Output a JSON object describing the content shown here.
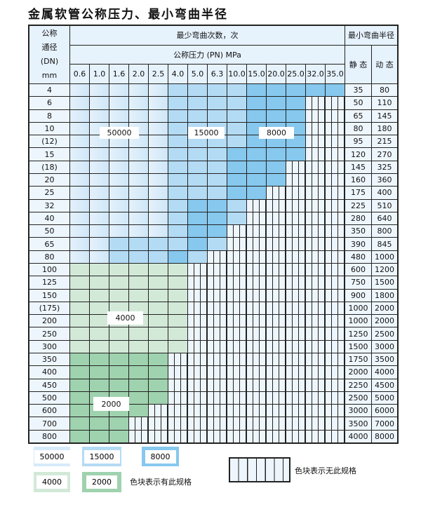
{
  "title": "金属软管公称压力、最小弯曲半径",
  "header": {
    "dn": "公称\n通径\n(DN)\nmm",
    "cycles": "最少弯曲次数，次",
    "pressure": "公称压力 (PN) MPa",
    "radius": "最小弯曲半径",
    "static": "静 态",
    "dynamic": "动 态"
  },
  "pressures": [
    "0.6",
    "1.0",
    "1.6",
    "2.0",
    "2.5",
    "4.0",
    "5.0",
    "6.3",
    "10.0",
    "15.0",
    "20.0",
    "25.0",
    "32.0",
    "35.0"
  ],
  "rows": [
    {
      "dn": "4",
      "static": "35",
      "dynamic": "80",
      "cells": "LLLLLMMMMDDDDD"
    },
    {
      "dn": "6",
      "static": "50",
      "dynamic": "110",
      "cells": "LLLLLMMMMDDDNN"
    },
    {
      "dn": "8",
      "static": "65",
      "dynamic": "145",
      "cells": "LLLLLMMMMDDDNN"
    },
    {
      "dn": "10",
      "static": "80",
      "dynamic": "180",
      "cells": "LLLLLMMMMDDDNN"
    },
    {
      "dn": "(12)",
      "static": "95",
      "dynamic": "215",
      "cells": "LLLLLMMMMDDDNN"
    },
    {
      "dn": "15",
      "static": "120",
      "dynamic": "270",
      "cells": "LLLLLMMMDDDDNN"
    },
    {
      "dn": "(18)",
      "static": "145",
      "dynamic": "325",
      "cells": "LLLLLMMMDDDNNN"
    },
    {
      "dn": "20",
      "static": "160",
      "dynamic": "360",
      "cells": "LLLLLMMMDDDNNN"
    },
    {
      "dn": "25",
      "static": "175",
      "dynamic": "400",
      "cells": "LLLLLMMMDDNNNN"
    },
    {
      "dn": "32",
      "static": "225",
      "dynamic": "510",
      "cells": "LLLLLMDDMNNNNN"
    },
    {
      "dn": "40",
      "static": "280",
      "dynamic": "640",
      "cells": "LLLLLMDDMNNNNN"
    },
    {
      "dn": "50",
      "static": "350",
      "dynamic": "800",
      "cells": "LLLLLMDDNNNNNN"
    },
    {
      "dn": "65",
      "static": "390",
      "dynamic": "845",
      "cells": "LLMMMMDMNNNNNN"
    },
    {
      "dn": "80",
      "static": "480",
      "dynamic": "1000",
      "cells": "LLMMMDMNNNNNNN"
    },
    {
      "dn": "100",
      "static": "600",
      "dynamic": "1200",
      "cells": "GGGGGGNNNNNNNN"
    },
    {
      "dn": "125",
      "static": "750",
      "dynamic": "1500",
      "cells": "GGGGGGNNNNNNNN"
    },
    {
      "dn": "150",
      "static": "900",
      "dynamic": "1800",
      "cells": "GGGGGGNNNNNNNN"
    },
    {
      "dn": "(175)",
      "static": "1000",
      "dynamic": "2000",
      "cells": "GGGGGGNNNNNNNN"
    },
    {
      "dn": "200",
      "static": "1000",
      "dynamic": "2000",
      "cells": "GGGGGGNNNNNNNN"
    },
    {
      "dn": "250",
      "static": "1250",
      "dynamic": "2500",
      "cells": "GGGGGGNNNNNNNN"
    },
    {
      "dn": "300",
      "static": "1500",
      "dynamic": "3000",
      "cells": "GGGGGGNNNNNNNN"
    },
    {
      "dn": "350",
      "static": "1750",
      "dynamic": "3500",
      "cells": "HHHHHNNNNNNNNN"
    },
    {
      "dn": "400",
      "static": "2000",
      "dynamic": "4000",
      "cells": "HHHHHNNNNNNNNN"
    },
    {
      "dn": "450",
      "static": "2250",
      "dynamic": "4500",
      "cells": "HHHHHNNNNNNNNN"
    },
    {
      "dn": "500",
      "static": "2500",
      "dynamic": "5000",
      "cells": "HHHHHNNNNNNNNN"
    },
    {
      "dn": "600",
      "static": "3000",
      "dynamic": "6000",
      "cells": "HHHHNNNNNNNNNN"
    },
    {
      "dn": "700",
      "static": "3500",
      "dynamic": "7000",
      "cells": "HHHNNNNNNNNNNN"
    },
    {
      "dn": "800",
      "static": "4000",
      "dynamic": "8000",
      "cells": "HHHNNNNNNNNNNN"
    }
  ],
  "region_labels": {
    "light_blue": "50000",
    "medium_blue": "15000",
    "dark_blue": "8000",
    "light_green": "4000",
    "dark_green": "2000"
  },
  "legend": {
    "items": [
      "50000",
      "15000",
      "8000",
      "4000",
      "2000"
    ],
    "available_text": "色块表示有此规格",
    "unavailable_text": "色块表示无此规格"
  },
  "colors": {
    "light_blue": "#d6ebfa",
    "medium_blue": "#b4dbf4",
    "dark_blue": "#86c8ee",
    "light_green": "#d3e9d8",
    "dark_green": "#9fd2ae",
    "none": "#eef6fd"
  }
}
